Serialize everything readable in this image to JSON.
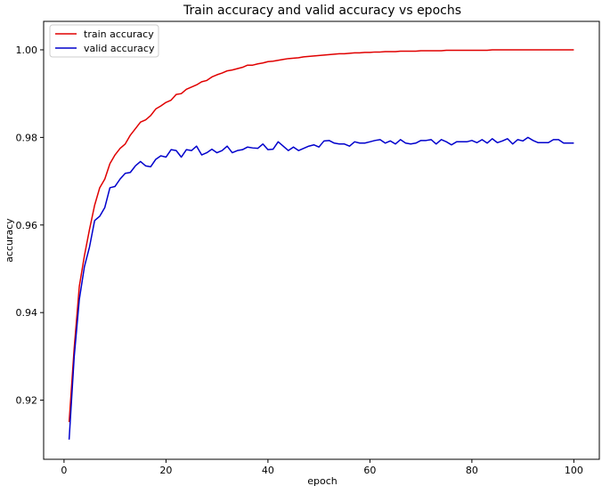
{
  "chart_data": {
    "type": "line",
    "title": "Train accuracy and valid accuracy vs epochs",
    "xlabel": "epoch",
    "ylabel": "accuracy",
    "xlim": [
      -4,
      105
    ],
    "ylim": [
      0.9065,
      1.0065
    ],
    "xticks": [
      0,
      20,
      40,
      60,
      80,
      100
    ],
    "yticks": [
      0.92,
      0.94,
      0.96,
      0.98,
      1.0
    ],
    "xtick_labels": [
      "0",
      "20",
      "40",
      "60",
      "80",
      "100"
    ],
    "ytick_labels": [
      "0.92",
      "0.94",
      "0.96",
      "0.98",
      "1.00"
    ],
    "grid": false,
    "legend_position": "top-left",
    "series": [
      {
        "name": "train accuracy",
        "color": "#e00000",
        "x": [
          1,
          2,
          3,
          4,
          5,
          6,
          7,
          8,
          9,
          10,
          11,
          12,
          13,
          14,
          15,
          16,
          17,
          18,
          19,
          20,
          21,
          22,
          23,
          24,
          25,
          26,
          27,
          28,
          29,
          30,
          31,
          32,
          33,
          34,
          35,
          36,
          37,
          38,
          39,
          40,
          41,
          42,
          43,
          44,
          45,
          46,
          47,
          48,
          49,
          50,
          51,
          52,
          53,
          54,
          55,
          56,
          57,
          58,
          59,
          60,
          61,
          62,
          63,
          64,
          65,
          66,
          67,
          68,
          69,
          70,
          71,
          72,
          73,
          74,
          75,
          76,
          77,
          78,
          79,
          80,
          81,
          82,
          83,
          84,
          85,
          86,
          87,
          88,
          89,
          90,
          91,
          92,
          93,
          94,
          95,
          96,
          97,
          98,
          99,
          100
        ],
        "values": [
          0.915,
          0.932,
          0.946,
          0.953,
          0.959,
          0.9645,
          0.9685,
          0.9705,
          0.974,
          0.976,
          0.9775,
          0.9785,
          0.9805,
          0.982,
          0.9835,
          0.984,
          0.985,
          0.9865,
          0.9872,
          0.988,
          0.9885,
          0.9898,
          0.99,
          0.991,
          0.9915,
          0.992,
          0.9927,
          0.993,
          0.9938,
          0.9943,
          0.9947,
          0.9952,
          0.9954,
          0.9957,
          0.996,
          0.9965,
          0.9965,
          0.9968,
          0.997,
          0.9973,
          0.9974,
          0.9976,
          0.9978,
          0.998,
          0.9981,
          0.9982,
          0.9984,
          0.9985,
          0.9986,
          0.9987,
          0.9988,
          0.9989,
          0.999,
          0.9991,
          0.9991,
          0.9992,
          0.9993,
          0.9993,
          0.9994,
          0.9994,
          0.9995,
          0.9995,
          0.9996,
          0.9996,
          0.9996,
          0.9997,
          0.9997,
          0.9997,
          0.9997,
          0.9998,
          0.9998,
          0.9998,
          0.9998,
          0.9998,
          0.9999,
          0.9999,
          0.9999,
          0.9999,
          0.9999,
          0.9999,
          0.9999,
          0.9999,
          0.9999,
          1.0,
          1.0,
          1.0,
          1.0,
          1.0,
          1.0,
          1.0,
          1.0,
          1.0,
          1.0,
          1.0,
          1.0,
          1.0,
          1.0,
          1.0,
          1.0,
          1.0
        ]
      },
      {
        "name": "valid accuracy",
        "color": "#0000cc",
        "x": [
          1,
          2,
          3,
          4,
          5,
          6,
          7,
          8,
          9,
          10,
          11,
          12,
          13,
          14,
          15,
          16,
          17,
          18,
          19,
          20,
          21,
          22,
          23,
          24,
          25,
          26,
          27,
          28,
          29,
          30,
          31,
          32,
          33,
          34,
          35,
          36,
          37,
          38,
          39,
          40,
          41,
          42,
          43,
          44,
          45,
          46,
          47,
          48,
          49,
          50,
          51,
          52,
          53,
          54,
          55,
          56,
          57,
          58,
          59,
          60,
          61,
          62,
          63,
          64,
          65,
          66,
          67,
          68,
          69,
          70,
          71,
          72,
          73,
          74,
          75,
          76,
          77,
          78,
          79,
          80,
          81,
          82,
          83,
          84,
          85,
          86,
          87,
          88,
          89,
          90,
          91,
          92,
          93,
          94,
          95,
          96,
          97,
          98,
          99,
          100
        ],
        "values": [
          0.911,
          0.93,
          0.943,
          0.9505,
          0.955,
          0.961,
          0.962,
          0.964,
          0.9685,
          0.9688,
          0.9705,
          0.9718,
          0.972,
          0.9735,
          0.9745,
          0.9735,
          0.9733,
          0.975,
          0.9758,
          0.9755,
          0.9772,
          0.977,
          0.9755,
          0.9772,
          0.977,
          0.978,
          0.976,
          0.9765,
          0.9773,
          0.9765,
          0.977,
          0.978,
          0.9765,
          0.977,
          0.9772,
          0.9778,
          0.9776,
          0.9775,
          0.9785,
          0.9772,
          0.9773,
          0.979,
          0.978,
          0.977,
          0.9778,
          0.977,
          0.9775,
          0.978,
          0.9783,
          0.9778,
          0.9792,
          0.9793,
          0.9787,
          0.9785,
          0.9785,
          0.978,
          0.979,
          0.9787,
          0.9787,
          0.979,
          0.9793,
          0.9795,
          0.9787,
          0.9792,
          0.9785,
          0.9795,
          0.9787,
          0.9785,
          0.9787,
          0.9793,
          0.9793,
          0.9795,
          0.9785,
          0.9795,
          0.979,
          0.9783,
          0.979,
          0.979,
          0.979,
          0.9793,
          0.9788,
          0.9795,
          0.9787,
          0.9797,
          0.9788,
          0.9792,
          0.9797,
          0.9785,
          0.9795,
          0.9792,
          0.98,
          0.9793,
          0.9788,
          0.9788,
          0.9788,
          0.9795,
          0.9795,
          0.9787,
          0.9787,
          0.9787
        ]
      }
    ]
  }
}
